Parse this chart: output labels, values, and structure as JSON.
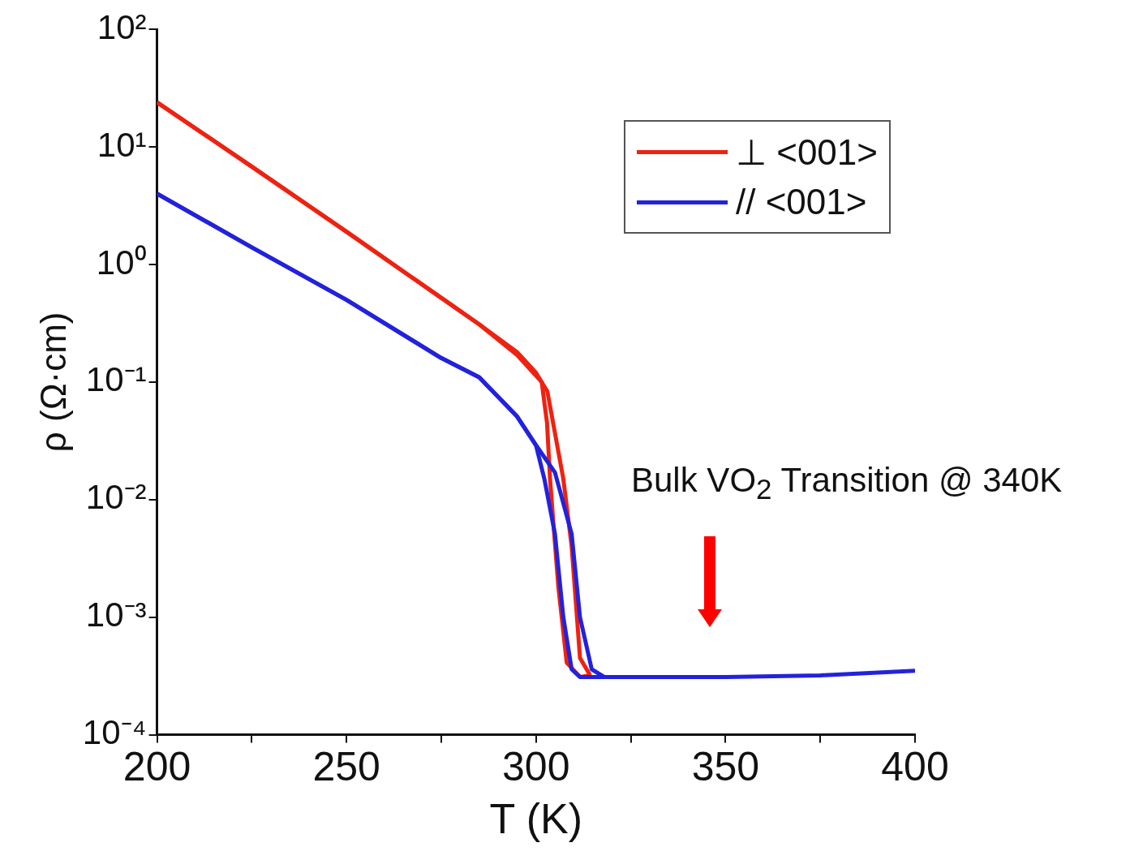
{
  "chart_data": {
    "type": "line",
    "xlabel": "T (K)",
    "ylabel": "ρ (Ω·cm)",
    "log": "y",
    "grid": false,
    "legend": "top right",
    "marker": "none",
    "line_style": "solid",
    "xlim": [
      200,
      400
    ],
    "xticks": [
      200,
      {
        "value": 225,
        "label": null
      },
      250,
      {
        "value": 275,
        "label": null
      },
      300,
      {
        "value": 325,
        "label": null
      },
      350,
      {
        "value": 375,
        "label": null
      },
      400
    ],
    "ylim": [
      0.0001,
      100
    ],
    "yticks": [
      {
        "value": 0.0001,
        "label": "10⁻⁴"
      },
      {
        "value": 0.001,
        "label": "10⁻³"
      },
      {
        "value": 0.01,
        "label": "10⁻²"
      },
      {
        "value": 0.1,
        "label": "10⁻¹"
      },
      {
        "value": 1,
        "label": "10⁰"
      },
      {
        "value": 10,
        "label": "10¹"
      },
      {
        "value": 100,
        "label": "10²"
      }
    ],
    "annotations": [
      "Bulk VO$_{2}$ Transition @ 340K"
    ],
    "series": [
      {
        "name": "⊥ <001>",
        "color": "#ee2211",
        "x": [
          200,
          225,
          250,
          275,
          285,
          295,
          300,
          303,
          307.2,
          309.4,
          310.5,
          311.6,
          314.3
        ],
        "values": [
          24,
          6.8,
          1.9,
          0.52,
          0.31,
          0.18,
          0.12,
          0.083,
          0.015,
          0.004,
          0.00135,
          0.00045,
          0.00032
        ]
      },
      {
        "color": "#ee2211",
        "x": [
          200,
          225,
          250,
          275,
          285,
          295,
          301.5,
          302.9,
          303.7,
          304.8,
          305.9,
          308.1,
          311.6,
          314.3
        ],
        "values": [
          24,
          6.8,
          1.9,
          0.52,
          0.31,
          0.17,
          0.1,
          0.045,
          0.015,
          0.0051,
          0.0018,
          0.00041,
          0.00031,
          0.00032
        ]
      },
      {
        "name": "// <001>",
        "color": "#2222dd",
        "x": [
          200,
          225,
          250,
          275,
          285,
          295,
          300,
          305,
          309.4,
          311.6,
          314.7,
          318,
          330,
          350,
          375,
          400
        ],
        "values": [
          4,
          1.4,
          0.5,
          0.16,
          0.11,
          0.051,
          0.029,
          0.017,
          0.0051,
          0.001,
          0.00036,
          0.00031,
          0.00031,
          0.00031,
          0.00032,
          0.00035
        ]
      },
      {
        "color": "#2222dd",
        "x": [
          200,
          225,
          250,
          275,
          285,
          295,
          300,
          302.2,
          305,
          307.2,
          309.4,
          311.6,
          318
        ],
        "values": [
          4,
          1.4,
          0.5,
          0.16,
          0.11,
          0.051,
          0.029,
          0.015,
          0.0051,
          0.001,
          0.00036,
          0.00031,
          0.00031
        ]
      }
    ]
  }
}
